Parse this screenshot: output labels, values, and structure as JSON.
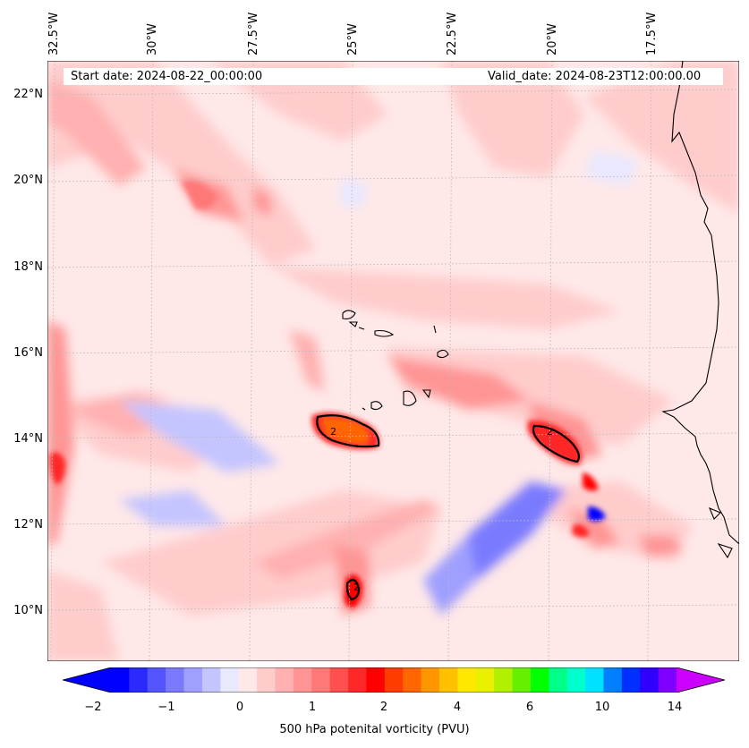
{
  "map": {
    "start_date_text": "Start date: 2024-08-22_00:00:00",
    "valid_date_text": "Valid_date: 2024-08-23T12:00:00.00",
    "longitude_labels": [
      "32.5°W",
      "30°W",
      "27.5°W",
      "25°W",
      "22.5°W",
      "20°W",
      "17.5°W"
    ],
    "latitude_labels": [
      "22°N",
      "20°N",
      "18°N",
      "16°N",
      "14°N",
      "12°N",
      "10°N"
    ],
    "contour_label": "2"
  },
  "colorbar": {
    "label": "500 hPa potenital vorticity (PVU)",
    "ticks": [
      "−2",
      "−1",
      "0",
      "1",
      "2",
      "4",
      "6",
      "10",
      "14"
    ],
    "colors": [
      "#0000ff",
      "#2a2aff",
      "#5555ff",
      "#7a7aff",
      "#9f9fff",
      "#c4c4ff",
      "#e8e8ff",
      "#ffe8e8",
      "#ffcccc",
      "#ffb0b0",
      "#ff9494",
      "#ff7878",
      "#ff5050",
      "#ff2828",
      "#ff0000",
      "#ff3c00",
      "#ff6600",
      "#ff9600",
      "#ffc000",
      "#ffe800",
      "#e8f000",
      "#b0f000",
      "#66f000",
      "#00ff00",
      "#00ff88",
      "#00ffcc",
      "#00e0ff",
      "#0080ff",
      "#0030ff",
      "#3000ff",
      "#8000ff"
    ],
    "under_color": "#0000ff",
    "over_color": "#cc00ff"
  }
}
